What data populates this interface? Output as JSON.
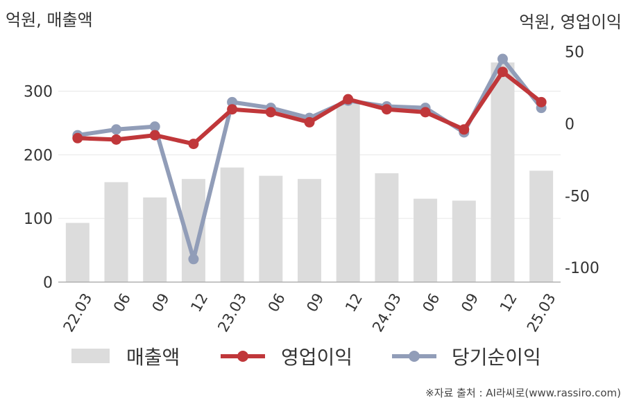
{
  "chart_data": {
    "type": "bar+line",
    "y_left_unit": "억원, 매출액",
    "y_right_unit": "억원, 영업이익",
    "categories": [
      "22.03",
      "06",
      "09",
      "12",
      "23.03",
      "06",
      "09",
      "12",
      "24.03",
      "06",
      "09",
      "12",
      "25.03"
    ],
    "bar_series": {
      "name": "매출액",
      "axis": "left",
      "values": [
        93,
        157,
        133,
        162,
        180,
        167,
        162,
        280,
        171,
        131,
        128,
        345,
        175
      ]
    },
    "line_series": [
      {
        "name": "영업이익",
        "axis": "right",
        "values": [
          -10,
          -11,
          -8,
          -14,
          10,
          8,
          1,
          17,
          10,
          8,
          -4,
          36,
          15
        ]
      },
      {
        "name": "당기순이익",
        "axis": "right",
        "values": [
          -8,
          -4,
          -2,
          -94,
          15,
          11,
          4,
          16,
          12,
          11,
          -6,
          45,
          11
        ]
      }
    ],
    "y_left_ticks": [
      0,
      100,
      200,
      300
    ],
    "y_left_range": [
      0,
      380
    ],
    "y_right_ticks": [
      50,
      0,
      -50,
      -100
    ],
    "y_right_range": [
      -110,
      58
    ],
    "grid": true,
    "legend_position": "bottom",
    "colors": {
      "bar": "#dcdcdc",
      "operating_profit": "#c0373a",
      "net_income": "#919db8",
      "grid": "#e6e6e6",
      "axis": "#b0b0b0"
    }
  },
  "legend": {
    "items": [
      {
        "label": "매출액",
        "kind": "bar"
      },
      {
        "label": "영업이익",
        "kind": "line-red"
      },
      {
        "label": "당기순이익",
        "kind": "line-gray"
      }
    ]
  },
  "source_text": "※자료 출처 : AI라씨로(www.rassiro.com)"
}
